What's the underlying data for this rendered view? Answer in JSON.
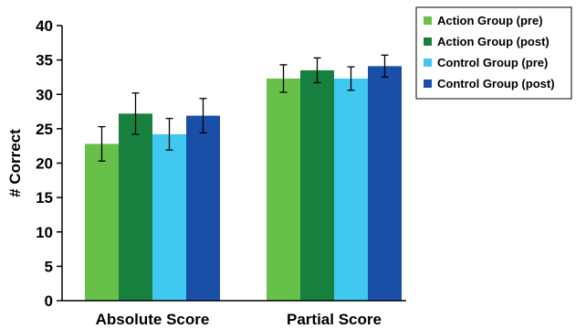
{
  "chart_data": {
    "type": "bar",
    "title": "",
    "xlabel": "",
    "ylabel": "# Correct",
    "ylim": [
      0,
      40
    ],
    "yticks": [
      0,
      5,
      10,
      15,
      20,
      25,
      30,
      35,
      40
    ],
    "categories": [
      "Absolute Score",
      "Partial Score"
    ],
    "grid": false,
    "legend_position": "top-right",
    "series": [
      {
        "name": "Action Group (pre)",
        "color": "#66c04a",
        "values": [
          22.8,
          32.3
        ],
        "errors": [
          2.5,
          2.0
        ]
      },
      {
        "name": "Action Group (post)",
        "color": "#17803e",
        "values": [
          27.2,
          33.5
        ],
        "errors": [
          3.0,
          1.8
        ]
      },
      {
        "name": "Control Group (pre)",
        "color": "#40c8f0",
        "values": [
          24.2,
          32.3
        ],
        "errors": [
          2.3,
          1.7
        ]
      },
      {
        "name": "Control Group (post)",
        "color": "#1a4fa8",
        "values": [
          26.9,
          34.1
        ],
        "errors": [
          2.5,
          1.6
        ]
      }
    ]
  }
}
